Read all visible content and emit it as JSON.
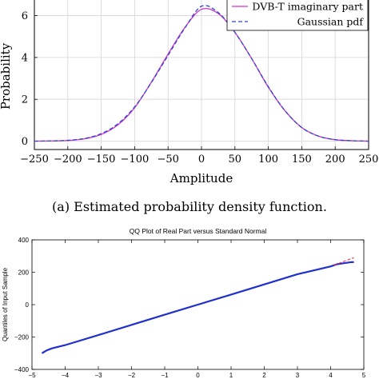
{
  "chart_data": [
    {
      "type": "line",
      "xlabel": "Amplitude",
      "ylabel": "Probability",
      "xlim": [
        -250,
        250
      ],
      "ylim": [
        -0.4,
        6.9
      ],
      "xticks": [
        -250,
        -200,
        -150,
        -100,
        -50,
        0,
        50,
        100,
        150,
        200,
        250
      ],
      "yticks": [
        0,
        2,
        4,
        6
      ],
      "grid": true,
      "legend_position": "top-right",
      "caption": "(a) Estimated probability density function.",
      "series": [
        {
          "name": "DVB-T imaginary part",
          "color": "#cc33cc",
          "dash": "solid",
          "x": [
            -250,
            -225,
            -200,
            -175,
            -150,
            -125,
            -100,
            -75,
            -50,
            -25,
            0,
            25,
            50,
            75,
            100,
            125,
            150,
            175,
            200,
            225,
            250
          ],
          "y": [
            0.0,
            0.01,
            0.03,
            0.11,
            0.32,
            0.78,
            1.6,
            2.82,
            4.16,
            5.43,
            6.3,
            6.1,
            5.2,
            3.95,
            2.58,
            1.45,
            0.65,
            0.24,
            0.07,
            0.02,
            0.0
          ]
        },
        {
          "name": "Gaussian pdf",
          "color": "#3344cc",
          "dash": "dashed",
          "x": [
            -250,
            -225,
            -200,
            -175,
            -150,
            -125,
            -100,
            -75,
            -50,
            -25,
            0,
            25,
            50,
            75,
            100,
            125,
            150,
            175,
            200,
            225,
            250
          ],
          "y": [
            0.0,
            0.01,
            0.04,
            0.13,
            0.36,
            0.83,
            1.64,
            2.8,
            4.1,
            5.4,
            6.45,
            6.15,
            5.2,
            3.95,
            2.6,
            1.45,
            0.65,
            0.24,
            0.07,
            0.02,
            0.0
          ]
        }
      ]
    },
    {
      "type": "line",
      "title": "QQ Plot of Real Part versus Standard Normal",
      "ylabel": "Quantiles of Input Sample",
      "xlim": [
        -5,
        5
      ],
      "ylim": [
        -400,
        400
      ],
      "xticks": [
        -5,
        -4,
        -3,
        -2,
        -1,
        0,
        1,
        2,
        3,
        4,
        5
      ],
      "yticks": [
        -400,
        -200,
        0,
        200,
        400
      ],
      "grid": false,
      "series": [
        {
          "name": "",
          "color": "#1f2fd0",
          "dash": "solid",
          "x": [
            -4.7,
            -4.55,
            -4.4,
            -4.0,
            -3.0,
            -2.0,
            -1.0,
            0.0,
            1.0,
            2.0,
            3.0,
            4.0,
            4.2,
            4.4,
            4.6,
            4.7
          ],
          "y": [
            -300,
            -282,
            -270,
            -250,
            -188,
            -125,
            -62,
            0,
            62,
            125,
            188,
            236,
            250,
            256,
            262,
            263
          ]
        },
        {
          "name": "",
          "color": "#ee3355",
          "dash": "dashed",
          "x": [
            4.1,
            4.7
          ],
          "y": [
            244,
            290
          ]
        }
      ]
    }
  ]
}
